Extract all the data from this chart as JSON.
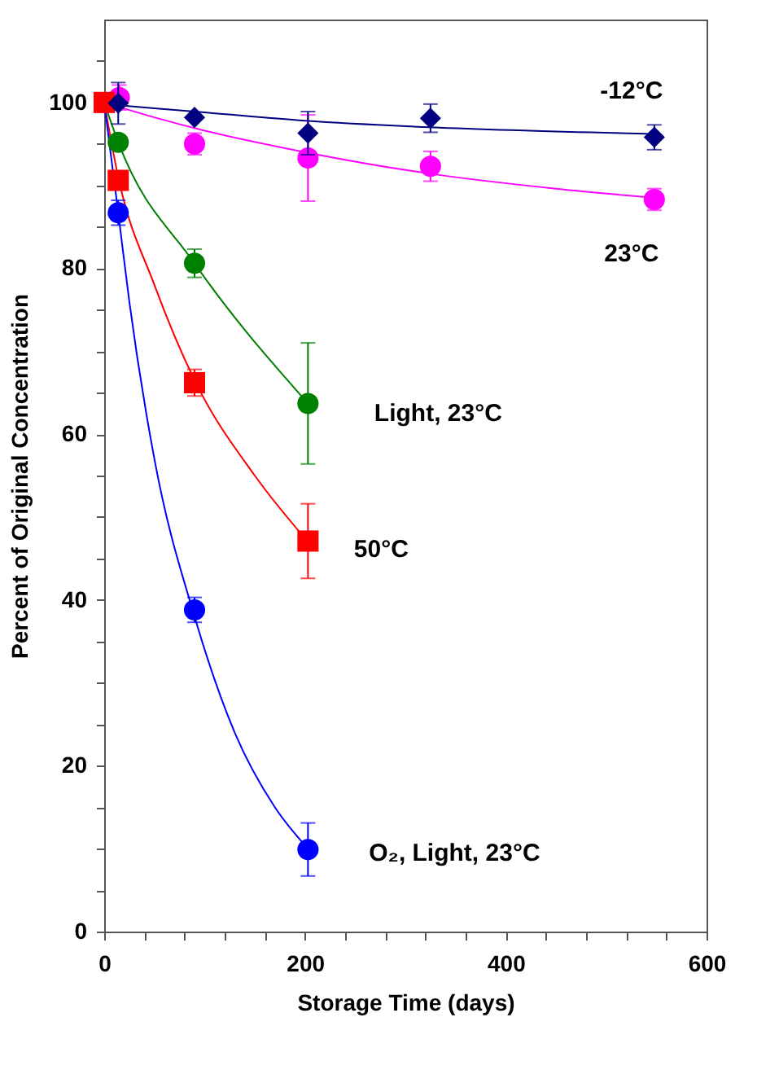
{
  "chart_data": {
    "type": "scatter",
    "xlabel": "Storage Time (days)",
    "ylabel": "Percent of Original Concentration",
    "xlim": [
      0,
      600
    ],
    "ylim": [
      0,
      110
    ],
    "xticks": [
      0,
      {
        "value": 40,
        "label": null
      },
      {
        "value": 80,
        "label": null
      },
      {
        "value": 120,
        "label": null
      },
      {
        "value": 160,
        "label": null
      },
      200,
      {
        "value": 240,
        "label": null
      },
      {
        "value": 280,
        "label": null
      },
      {
        "value": 320,
        "label": null
      },
      {
        "value": 360,
        "label": null
      },
      400,
      {
        "value": 440,
        "label": null
      },
      {
        "value": 480,
        "label": null
      },
      {
        "value": 520,
        "label": null
      },
      {
        "value": 560,
        "label": null
      },
      600
    ],
    "yticks": [
      0,
      {
        "value": 5,
        "label": null
      },
      {
        "value": 10,
        "label": null
      },
      {
        "value": 15,
        "label": null
      },
      20,
      {
        "value": 25,
        "label": null
      },
      {
        "value": 30,
        "label": null
      },
      {
        "value": 35,
        "label": null
      },
      40,
      {
        "value": 45,
        "label": null
      },
      {
        "value": 50,
        "label": null
      },
      {
        "value": 55,
        "label": null
      },
      60,
      {
        "value": 65,
        "label": null
      },
      {
        "value": 70,
        "label": null
      },
      {
        "value": 75,
        "label": null
      },
      80,
      {
        "value": 85,
        "label": null
      },
      {
        "value": 90,
        "label": null
      },
      {
        "value": 95,
        "label": null
      },
      100,
      {
        "value": 105,
        "label": null
      }
    ],
    "grid": false,
    "series": [
      {
        "type": "line",
        "line_style": "solid",
        "color": "#000080",
        "x": [
          0,
          100,
          200,
          325,
          548
        ],
        "values": [
          99.8,
          98.8,
          97.8,
          97.0,
          96.2
        ]
      },
      {
        "type": "line",
        "line_style": "solid",
        "color": "#ff00ff",
        "x": [
          0,
          50,
          100,
          200,
          325,
          450,
          548
        ],
        "values": [
          100,
          98.2,
          96.6,
          94.0,
          91.4,
          89.6,
          88.5
        ]
      },
      {
        "type": "line",
        "line_style": "solid",
        "color": "#008000",
        "x": [
          0,
          14,
          90,
          203
        ],
        "values": [
          100,
          95.2,
          80.6,
          63.7
        ]
      },
      {
        "type": "line",
        "line_style": "solid",
        "color": "#ff0000",
        "x": [
          0,
          14,
          50,
          90,
          150,
          203
        ],
        "values": [
          100,
          91,
          78,
          66.5,
          55,
          47
        ]
      },
      {
        "type": "line",
        "line_style": "solid",
        "color": "#0000ff",
        "x": [
          0,
          14,
          25,
          50,
          90,
          130,
          170,
          203
        ],
        "values": [
          100,
          86.7,
          76,
          57,
          38,
          24,
          15,
          10
        ]
      },
      {
        "name": "23°C",
        "marker": "circle",
        "color": "#ff00ff",
        "x": [
          15,
          90,
          203,
          325,
          548
        ],
        "values": [
          100.6,
          95,
          93.3,
          92.3,
          88.3
        ],
        "errors": [
          1.5,
          1.3,
          5.2,
          1.8,
          1.3
        ]
      },
      {
        "name": "Light, 23°C",
        "marker": "circle",
        "color": "#008000",
        "x": [
          14,
          90,
          203
        ],
        "values": [
          95.2,
          80.6,
          63.7
        ],
        "errors": [
          null,
          1.7,
          7.3
        ]
      },
      {
        "name": "O₂, Light, 23°C",
        "marker": "circle",
        "color": "#0000ff",
        "x": [
          14,
          90,
          203
        ],
        "values": [
          86.7,
          38.8,
          9.9
        ],
        "errors": [
          1.5,
          1.5,
          3.2
        ]
      },
      {
        "name": "50°C",
        "marker": "square",
        "color": "#ff0000",
        "x": [
          0,
          14,
          90,
          203
        ],
        "values": [
          100,
          90.6,
          66.2,
          47.1
        ],
        "errors": [
          null,
          null,
          1.6,
          4.5
        ]
      },
      {
        "name": "-12°C",
        "marker": "diamond",
        "color": "#000080",
        "x": [
          14,
          90,
          203,
          325,
          548
        ],
        "values": [
          99.9,
          98.2,
          96.3,
          98.1,
          95.8
        ],
        "errors": [
          2.5,
          null,
          2.6,
          1.7,
          1.5
        ]
      }
    ]
  }
}
